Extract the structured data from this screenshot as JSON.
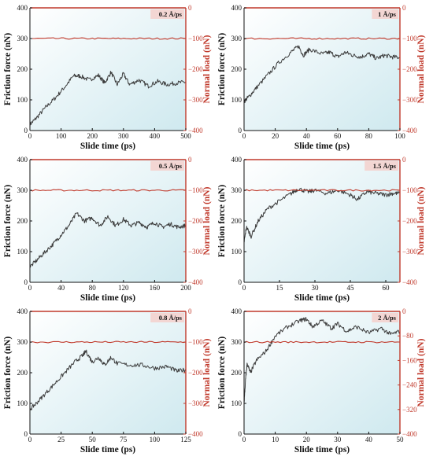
{
  "colors": {
    "friction": "#3c3c3c",
    "load": "#c0392b",
    "bg_left": "#ffffff",
    "bg_right": "#cfe9ef"
  },
  "chart_data": [
    {
      "type": "line",
      "tag": "0.2 Å/ps",
      "xlabel": "Slide time (ps)",
      "ylabel": "Friction force (nN)",
      "y2label": "Normal load (nN)",
      "xlim": [
        0,
        500
      ],
      "xticks": [
        0,
        100,
        200,
        300,
        400,
        500
      ],
      "ylim": [
        0,
        400
      ],
      "yticks": [
        0,
        100,
        200,
        300,
        400
      ],
      "y2lim": [
        -400,
        0
      ],
      "y2ticks": [
        -400,
        -300,
        -200,
        -100,
        0
      ],
      "series": [
        {
          "axis": "left",
          "x": [
            0,
            20,
            50,
            80,
            110,
            140,
            160,
            190,
            220,
            240,
            260,
            280,
            300,
            320,
            350,
            380,
            410,
            440,
            470,
            500
          ],
          "y": [
            20,
            40,
            75,
            105,
            140,
            178,
            178,
            165,
            180,
            155,
            190,
            150,
            185,
            150,
            165,
            145,
            160,
            150,
            155,
            158
          ]
        },
        {
          "axis": "right",
          "x": [
            0,
            500
          ],
          "y": [
            -100,
            -100
          ]
        }
      ]
    },
    {
      "type": "line",
      "tag": "1 Å/ps",
      "xlabel": "Slide time (ps)",
      "ylabel": "Friction force (nN)",
      "y2label": "Normal load (nN)",
      "xlim": [
        0,
        100
      ],
      "xticks": [
        0,
        20,
        40,
        60,
        80,
        100
      ],
      "ylim": [
        0,
        400
      ],
      "yticks": [
        0,
        100,
        200,
        300,
        400
      ],
      "y2lim": [
        -400,
        0
      ],
      "y2ticks": [
        -400,
        -300,
        -200,
        -100,
        0
      ],
      "series": [
        {
          "axis": "left",
          "x": [
            0,
            3,
            8,
            15,
            22,
            30,
            35,
            38,
            42,
            50,
            55,
            60,
            65,
            70,
            75,
            80,
            85,
            90,
            95,
            100
          ],
          "y": [
            95,
            110,
            140,
            180,
            220,
            255,
            275,
            245,
            265,
            250,
            255,
            240,
            255,
            245,
            240,
            250,
            235,
            245,
            240,
            238
          ]
        },
        {
          "axis": "right",
          "x": [
            0,
            100
          ],
          "y": [
            -100,
            -100
          ]
        }
      ]
    },
    {
      "type": "line",
      "tag": "0.5 Å/ps",
      "xlabel": "Slide time (ps)",
      "ylabel": "Friction force (nN)",
      "y2label": "Normal load (nN)",
      "xlim": [
        0,
        200
      ],
      "xticks": [
        0,
        40,
        80,
        120,
        160,
        200
      ],
      "ylim": [
        0,
        400
      ],
      "yticks": [
        0,
        100,
        200,
        300,
        400
      ],
      "y2lim": [
        -400,
        0
      ],
      "y2ticks": [
        -400,
        -300,
        -200,
        -100,
        0
      ],
      "series": [
        {
          "axis": "left",
          "x": [
            0,
            10,
            20,
            30,
            40,
            50,
            60,
            70,
            80,
            90,
            100,
            110,
            120,
            130,
            140,
            150,
            160,
            170,
            180,
            190,
            200
          ],
          "y": [
            50,
            75,
            100,
            125,
            155,
            185,
            225,
            200,
            210,
            185,
            215,
            185,
            205,
            185,
            195,
            180,
            195,
            180,
            190,
            180,
            185
          ]
        },
        {
          "axis": "right",
          "x": [
            0,
            200
          ],
          "y": [
            -100,
            -100
          ]
        }
      ]
    },
    {
      "type": "line",
      "tag": "1.5 Å/ps",
      "xlabel": "Slide time (ps)",
      "ylabel": "Friction force (nN)",
      "y2label": "Normal load (nN)",
      "xlim": [
        0,
        66
      ],
      "xticks": [
        0,
        15,
        30,
        45,
        60
      ],
      "ylim": [
        0,
        400
      ],
      "yticks": [
        0,
        100,
        200,
        300,
        400
      ],
      "y2lim": [
        -400,
        0
      ],
      "y2ticks": [
        -400,
        -300,
        -200,
        -100,
        0
      ],
      "series": [
        {
          "axis": "left",
          "x": [
            0,
            1,
            3,
            6,
            10,
            15,
            20,
            23,
            27,
            30,
            35,
            40,
            45,
            48,
            52,
            56,
            60,
            63,
            66
          ],
          "y": [
            130,
            180,
            150,
            200,
            240,
            265,
            290,
            305,
            295,
            300,
            290,
            300,
            285,
            270,
            295,
            290,
            285,
            290,
            290
          ]
        },
        {
          "axis": "right",
          "x": [
            0,
            66
          ],
          "y": [
            -100,
            -100
          ]
        }
      ]
    },
    {
      "type": "line",
      "tag": "0.8 Å/ps",
      "xlabel": "Slide time (ps)",
      "ylabel": "Friction force (nN)",
      "y2label": "Normal load (nN)",
      "xlim": [
        0,
        125
      ],
      "xticks": [
        0,
        25,
        50,
        75,
        100,
        125
      ],
      "ylim": [
        0,
        400
      ],
      "yticks": [
        0,
        100,
        200,
        300,
        400
      ],
      "y2lim": [
        -400,
        0
      ],
      "y2ticks": [
        -400,
        -300,
        -200,
        -100,
        0
      ],
      "series": [
        {
          "axis": "left",
          "x": [
            0,
            5,
            12,
            20,
            28,
            36,
            42,
            45,
            50,
            55,
            60,
            65,
            70,
            80,
            90,
            100,
            110,
            118,
            125
          ],
          "y": [
            80,
            100,
            130,
            165,
            200,
            235,
            255,
            270,
            235,
            250,
            225,
            250,
            230,
            225,
            225,
            215,
            220,
            205,
            210
          ]
        },
        {
          "axis": "right",
          "x": [
            0,
            125
          ],
          "y": [
            -100,
            -100
          ]
        }
      ]
    },
    {
      "type": "line",
      "tag": "2 Å/ps",
      "xlabel": "Slide time (ps)",
      "ylabel": "Friction force (nN)",
      "y2label": "Normal load (nN)",
      "xlim": [
        0,
        50
      ],
      "xticks": [
        0,
        10,
        20,
        30,
        40,
        50
      ],
      "ylim": [
        0,
        400
      ],
      "yticks": [
        0,
        100,
        200,
        300,
        400
      ],
      "y2lim": [
        -400,
        0
      ],
      "y2ticks": [
        -400,
        -320,
        -240,
        -160,
        -80,
        0
      ],
      "series": [
        {
          "axis": "left",
          "x": [
            0,
            0.5,
            1,
            2,
            4,
            7,
            10,
            14,
            18,
            20,
            22,
            25,
            28,
            30,
            33,
            36,
            40,
            44,
            47,
            50
          ],
          "y": [
            100,
            180,
            230,
            200,
            240,
            270,
            320,
            350,
            370,
            375,
            350,
            370,
            345,
            360,
            335,
            350,
            330,
            345,
            325,
            335
          ]
        },
        {
          "axis": "right",
          "x": [
            0,
            50
          ],
          "y": [
            -100,
            -100
          ]
        }
      ]
    }
  ]
}
